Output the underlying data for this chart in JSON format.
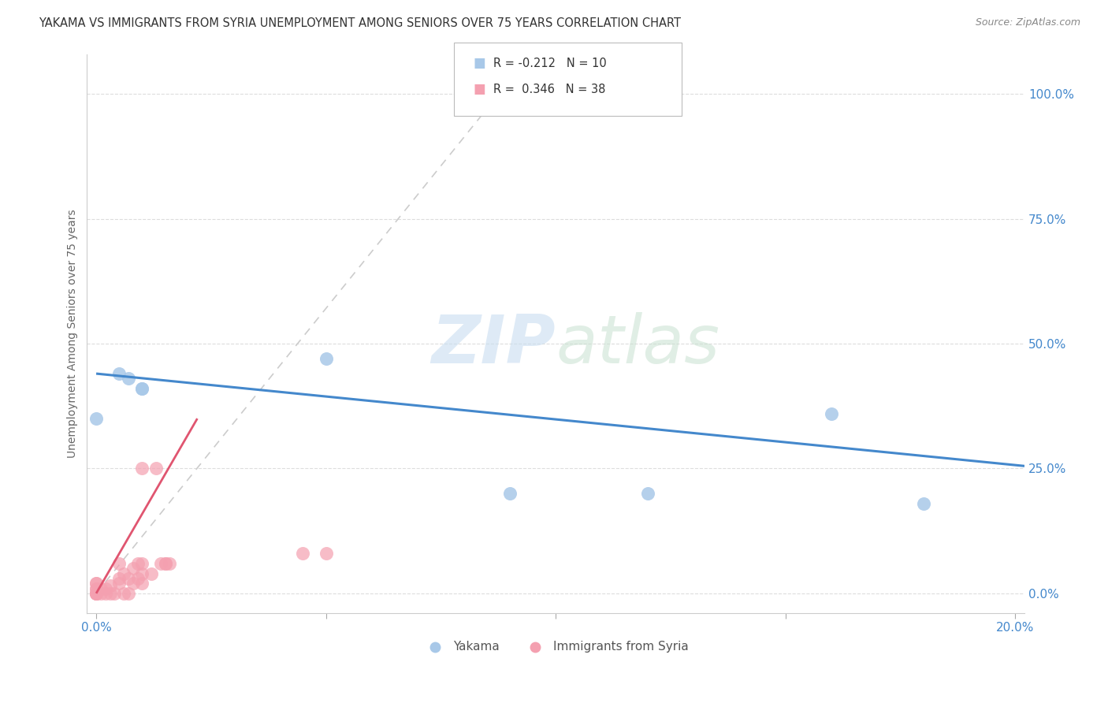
{
  "title": "YAKAMA VS IMMIGRANTS FROM SYRIA UNEMPLOYMENT AMONG SENIORS OVER 75 YEARS CORRELATION CHART",
  "source": "Source: ZipAtlas.com",
  "ylabel": "Unemployment Among Seniors over 75 years",
  "yticks": [
    "0.0%",
    "25.0%",
    "50.0%",
    "75.0%",
    "100.0%"
  ],
  "ytick_vals": [
    0.0,
    0.25,
    0.5,
    0.75,
    1.0
  ],
  "xmin": -0.002,
  "xmax": 0.202,
  "ymin": -0.04,
  "ymax": 1.08,
  "legend_yakama": "Yakama",
  "legend_syria": "Immigrants from Syria",
  "r_yakama": "-0.212",
  "n_yakama": "10",
  "r_syria": "0.346",
  "n_syria": "38",
  "color_yakama": "#a8c8e8",
  "color_syria": "#f4a0b0",
  "color_line_yakama": "#4488cc",
  "color_line_syria": "#e05570",
  "yakama_x": [
    0.0,
    0.005,
    0.007,
    0.01,
    0.01,
    0.05,
    0.09,
    0.12,
    0.16,
    0.18
  ],
  "yakama_y": [
    0.35,
    0.44,
    0.43,
    0.41,
    0.41,
    0.47,
    0.2,
    0.2,
    0.36,
    0.18
  ],
  "syria_x": [
    0.0,
    0.0,
    0.0,
    0.0,
    0.0,
    0.0,
    0.0,
    0.0,
    0.001,
    0.001,
    0.002,
    0.002,
    0.003,
    0.003,
    0.004,
    0.005,
    0.005,
    0.005,
    0.006,
    0.006,
    0.007,
    0.007,
    0.008,
    0.008,
    0.009,
    0.009,
    0.01,
    0.01,
    0.01,
    0.01,
    0.012,
    0.013,
    0.014,
    0.015,
    0.015,
    0.016,
    0.045,
    0.05
  ],
  "syria_y": [
    0.0,
    0.0,
    0.0,
    0.0,
    0.01,
    0.01,
    0.02,
    0.02,
    0.0,
    0.01,
    0.0,
    0.01,
    0.0,
    0.015,
    0.0,
    0.02,
    0.03,
    0.06,
    0.0,
    0.04,
    0.0,
    0.03,
    0.02,
    0.05,
    0.03,
    0.06,
    0.02,
    0.04,
    0.06,
    0.25,
    0.04,
    0.25,
    0.06,
    0.06,
    0.06,
    0.06,
    0.08,
    0.08
  ],
  "gray_line_x": [
    0.0,
    0.092
  ],
  "gray_line_y": [
    0.0,
    1.05
  ],
  "yakama_trend_x": [
    0.0,
    0.202
  ],
  "yakama_trend_y": [
    0.44,
    0.255
  ],
  "syria_trend_x": [
    0.0,
    0.022
  ],
  "syria_trend_y": [
    0.0,
    0.35
  ]
}
